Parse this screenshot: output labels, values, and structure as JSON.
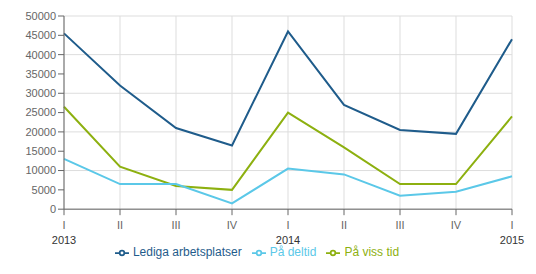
{
  "chart_data": {
    "type": "line",
    "categories": [
      "I",
      "II",
      "III",
      "IV",
      "I",
      "II",
      "III",
      "IV",
      "I"
    ],
    "annotations": [
      {
        "x": 0,
        "text": "2013"
      },
      {
        "x": 4,
        "text": "2014"
      },
      {
        "x": 8,
        "text": "2015"
      }
    ],
    "series": [
      {
        "name": "Lediga arbetsplatser",
        "color": "#1F5C8B",
        "values": [
          45500,
          32000,
          21000,
          16500,
          46000,
          27000,
          20500,
          19500,
          44000
        ]
      },
      {
        "name": "På viss tid",
        "color": "#8DB010",
        "values": [
          26500,
          11000,
          6000,
          5000,
          25000,
          16000,
          6500,
          6500,
          24000
        ]
      },
      {
        "name": "På deltid",
        "color": "#5BC8E8",
        "values": [
          13000,
          6500,
          6500,
          1500,
          10500,
          9000,
          3500,
          4500,
          8500
        ]
      }
    ],
    "ylim": [
      0,
      50000
    ],
    "yticks": [
      0,
      5000,
      10000,
      15000,
      20000,
      25000,
      30000,
      35000,
      40000,
      45000,
      50000
    ],
    "grid": true,
    "legend": "bottom"
  }
}
